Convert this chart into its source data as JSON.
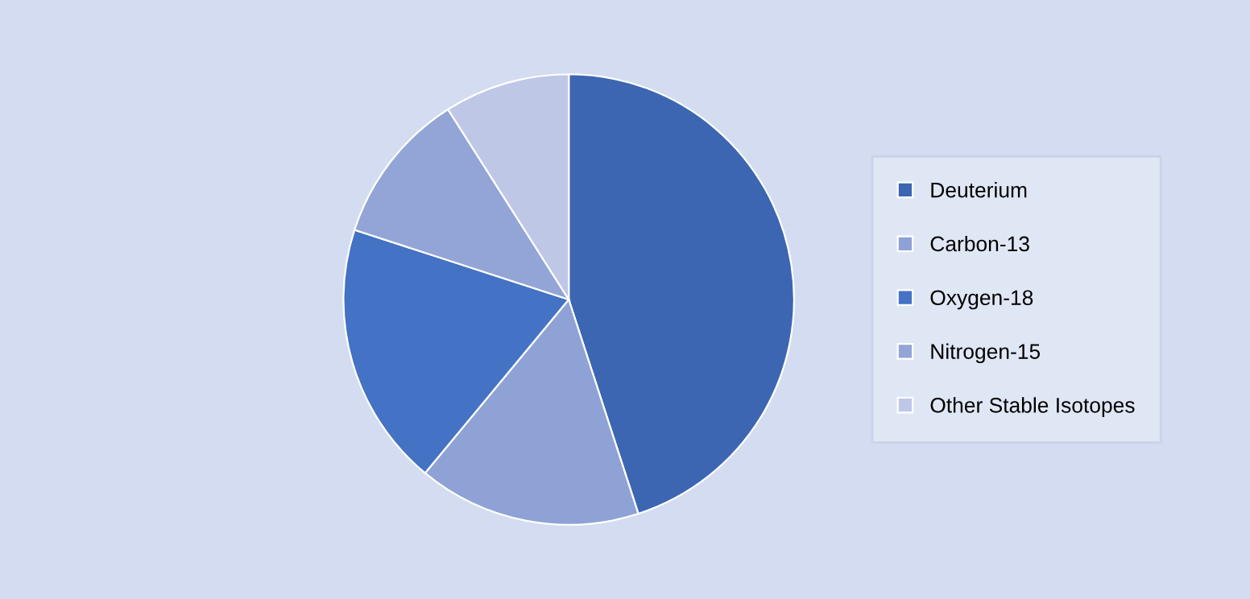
{
  "chart_data": {
    "type": "pie",
    "categories": [
      "Deuterium",
      "Carbon-13",
      "Oxygen-18",
      "Nitrogen-15",
      "Other Stable Isotopes"
    ],
    "values": [
      45,
      16,
      19,
      11,
      9
    ],
    "colors": [
      "#3c66b2",
      "#8fa2d6",
      "#4472c4",
      "#93a5d6",
      "#bfc7e7"
    ],
    "legend": "right"
  }
}
